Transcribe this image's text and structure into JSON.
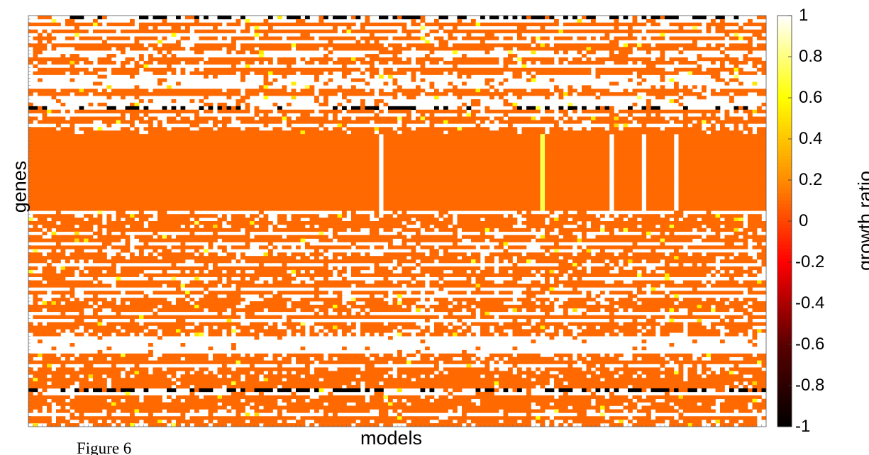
{
  "chart_data": {
    "type": "heatmap",
    "xlabel": "models",
    "ylabel": "genes",
    "colorbar": {
      "label": "growth ratio",
      "range": [
        -1,
        1
      ],
      "ticks": [
        1,
        0.8,
        0.6,
        0.4,
        0.2,
        0,
        -0.2,
        -0.4,
        -0.6,
        -0.8,
        -1
      ],
      "tick_labels": [
        "1",
        "0.8",
        "0.6",
        "0.4",
        "0.2",
        "0",
        "-0.2",
        "-0.4",
        "-0.6",
        "-0.8",
        "-1"
      ],
      "colormap": "hot",
      "colormap_stops": [
        {
          "value": -1,
          "color": "#000000"
        },
        {
          "value": -0.6,
          "color": "#5a0000"
        },
        {
          "value": -0.2,
          "color": "#ff0000"
        },
        {
          "value": 0.2,
          "color": "#ff8c00"
        },
        {
          "value": 0.6,
          "color": "#ffff00"
        },
        {
          "value": 1,
          "color": "#ffffff"
        }
      ]
    },
    "grid": false,
    "n_models": 160,
    "n_genes": 118,
    "dominant_value": 0.1,
    "white_value": 1,
    "bands": [
      {
        "genes": [
          0,
          0
        ],
        "value": -1,
        "note": "dark dashed top row"
      },
      {
        "genes": [
          26,
          26
        ],
        "value": -1
      },
      {
        "genes": [
          34,
          55
        ],
        "value": 0.1,
        "note": "solid block"
      },
      {
        "genes": [
          92,
          96
        ],
        "value": 1
      },
      {
        "genes": [
          107,
          107
        ],
        "value": -1
      }
    ],
    "white_columns": [
      76,
      126,
      133,
      140
    ],
    "light_columns": [
      111
    ]
  },
  "caption": "Figure 6"
}
